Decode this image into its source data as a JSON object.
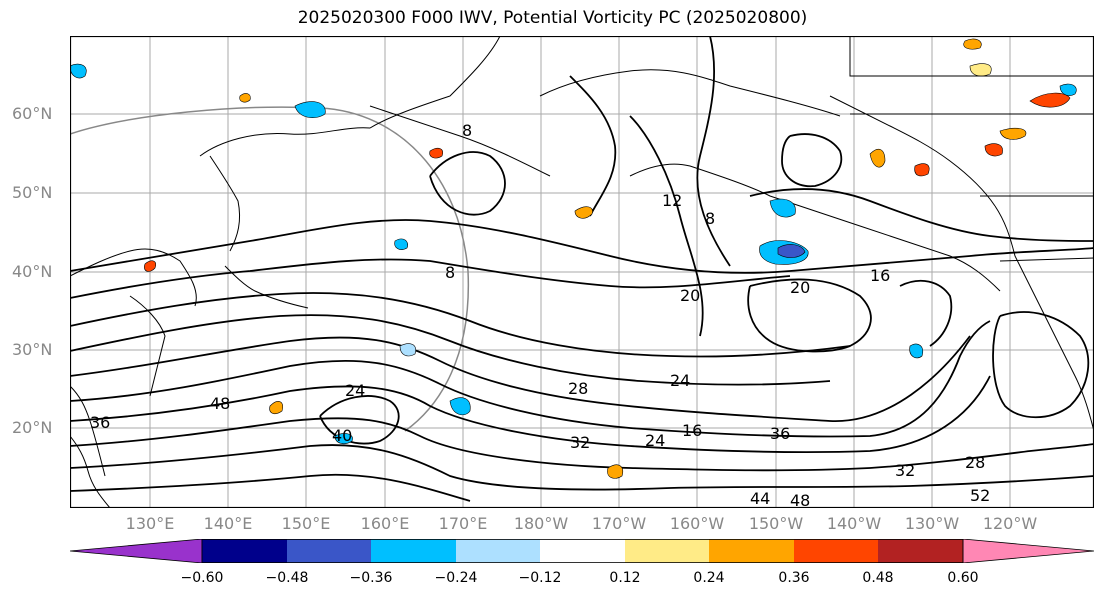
{
  "title": "2025020300 F000 IWV, Potential Vorticity PC (2025020800)",
  "lat_labels": [
    "60°N",
    "50°N",
    "40°N",
    "30°N",
    "20°N"
  ],
  "lon_labels": [
    "130°E",
    "140°E",
    "150°E",
    "160°E",
    "170°E",
    "180°W",
    "170°W",
    "160°W",
    "150°W",
    "140°W",
    "130°W",
    "120°W"
  ],
  "colorbar": {
    "tick_labels": [
      "−0.60",
      "−0.48",
      "−0.36",
      "−0.24",
      "−0.12",
      "0.12",
      "0.24",
      "0.36",
      "0.48",
      "0.60"
    ],
    "colors": [
      "#9932CC",
      "#00008B",
      "#3A56C8",
      "#00BFFF",
      "#ADE0FF",
      "#FFFFFF",
      "#FFEB87",
      "#FFA500",
      "#FF4500",
      "#B22222",
      "#FF87B4"
    ]
  },
  "contour_labels": [
    "8",
    "8",
    "8",
    "12",
    "16",
    "16",
    "20",
    "20",
    "24",
    "24",
    "24",
    "28",
    "28",
    "32",
    "32",
    "36",
    "36",
    "40",
    "44",
    "48",
    "48",
    "52"
  ],
  "colors": {
    "contour": "#000000",
    "grid": "#aaaaaa",
    "coast": "#000000",
    "circle": "#888888"
  }
}
